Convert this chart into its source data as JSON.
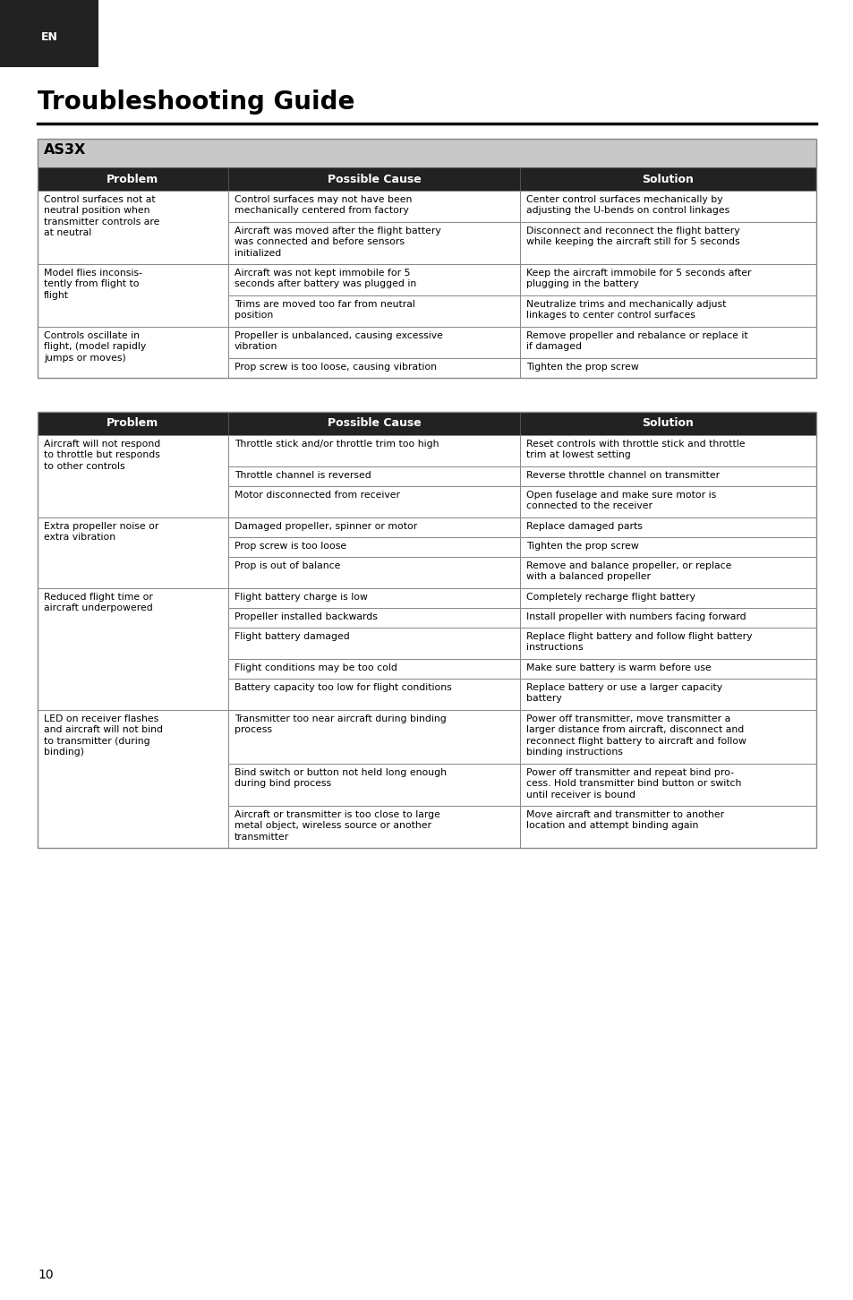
{
  "page_title": "Troubleshooting Guide",
  "en_label": "EN",
  "page_number": "10",
  "bg_color": "#ffffff",
  "dark_bg": "#222222",
  "as3x_bg": "#c8c8c8",
  "table1_title": "AS3X",
  "col_headers": [
    "Problem",
    "Possible Cause",
    "Solution"
  ],
  "table1_rows": [
    {
      "problem": "Control surfaces not at\nneutral position when\ntransmitter controls are\nat neutral",
      "causes": [
        "Control surfaces may not have been\nmechanically centered from factory",
        "Aircraft was moved after the flight battery\nwas connected and before sensors\ninitialized"
      ],
      "solutions": [
        "Center control surfaces mechanically by\nadjusting the U-bends on control linkages",
        "Disconnect and reconnect the flight battery\nwhile keeping the aircraft still for 5 seconds"
      ]
    },
    {
      "problem": "Model flies inconsis-\ntently from flight to\nflight",
      "causes": [
        "Aircraft was not kept immobile for 5\nseconds after battery was plugged in",
        "Trims are moved too far from neutral\nposition"
      ],
      "solutions": [
        "Keep the aircraft immobile for 5 seconds after\nplugging in the battery",
        "Neutralize trims and mechanically adjust\nlinkages to center control surfaces"
      ]
    },
    {
      "problem": "Controls oscillate in\nflight, (model rapidly\njumps or moves)",
      "causes": [
        "Propeller is unbalanced, causing excessive\nvibration",
        "Prop screw is too loose, causing vibration"
      ],
      "solutions": [
        "Remove propeller and rebalance or replace it\nif damaged",
        "Tighten the prop screw"
      ]
    }
  ],
  "table2_rows": [
    {
      "problem": "Aircraft will not respond\nto throttle but responds\nto other controls",
      "causes": [
        "Throttle stick and/or throttle trim too high",
        "Throttle channel is reversed",
        "Motor disconnected from receiver"
      ],
      "solutions": [
        "Reset controls with throttle stick and throttle\ntrim at lowest setting",
        "Reverse throttle channel on transmitter",
        "Open fuselage and make sure motor is\nconnected to the receiver"
      ]
    },
    {
      "problem": "Extra propeller noise or\nextra vibration",
      "causes": [
        "Damaged propeller, spinner or motor",
        "Prop screw is too loose",
        "Prop is out of balance"
      ],
      "solutions": [
        "Replace damaged parts",
        "Tighten the prop screw",
        "Remove and balance propeller, or replace\nwith a balanced propeller"
      ]
    },
    {
      "problem": "Reduced flight time or\naircraft underpowered",
      "causes": [
        "Flight battery charge is low",
        "Propeller installed backwards",
        "Flight battery damaged",
        "Flight conditions may be too cold",
        "Battery capacity too low for flight conditions"
      ],
      "solutions": [
        "Completely recharge flight battery",
        "Install propeller with numbers facing forward",
        "Replace flight battery and follow flight battery\ninstructions",
        "Make sure battery is warm before use",
        "Replace battery or use a larger capacity\nbattery"
      ]
    },
    {
      "problem": "LED on receiver flashes\nand aircraft will not bind\nto transmitter (during\nbinding)",
      "causes": [
        "Transmitter too near aircraft during binding\nprocess",
        "Bind switch or button not held long enough\nduring bind process",
        "Aircraft or transmitter is too close to large\nmetal object, wireless source or another\ntransmitter"
      ],
      "solutions": [
        "Power off transmitter, move transmitter a\nlarger distance from aircraft, disconnect and\nreconnect flight battery to aircraft and follow\nbinding instructions",
        "Power off transmitter and repeat bind pro-\ncess. Hold transmitter bind button or switch\nuntil receiver is bound",
        "Move aircraft and transmitter to another\nlocation and attempt binding again"
      ]
    }
  ]
}
